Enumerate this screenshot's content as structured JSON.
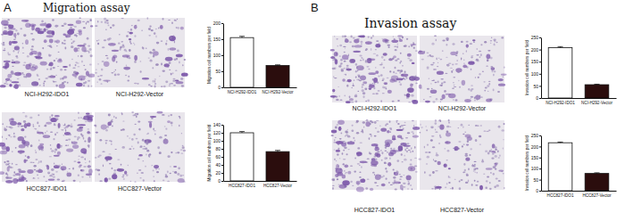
{
  "panels": [
    {
      "letter": "A",
      "title": "Migration assay",
      "captions": [
        [
          "NCI-H292-IDO1",
          "NCI-H292-Vector"
        ],
        [
          "HCC827-IDO1",
          "HCC827-Vector"
        ]
      ]
    },
    {
      "letter": "B",
      "title": "Invasion assay",
      "captions": [
        [
          "NCI-H292-IDO1",
          "NCI-H292-Vector"
        ],
        [
          "HCC827-IDO1",
          "HCC827-Vector"
        ]
      ]
    }
  ],
  "chart_data": [
    {
      "type": "bar",
      "categories": [
        "NCI-H292-IDO1",
        "NCI-H292-Vector"
      ],
      "values": [
        155,
        68
      ],
      "errors": [
        4,
        2
      ],
      "colors": [
        "#ffffff",
        "#2b0d0d"
      ],
      "ylabel": "Migration cell numbers per field",
      "ylim": [
        0,
        200
      ],
      "yticks": [
        0,
        50,
        100,
        150,
        200
      ]
    },
    {
      "type": "bar",
      "categories": [
        "HCC827-IDO1",
        "HCC827-Vector"
      ],
      "values": [
        120,
        73
      ],
      "errors": [
        3,
        3
      ],
      "colors": [
        "#ffffff",
        "#2b0d0d"
      ],
      "ylabel": "Migration cell numbers per field",
      "ylim": [
        0,
        140
      ],
      "yticks": [
        0,
        20,
        40,
        60,
        80,
        100,
        120,
        140
      ]
    },
    {
      "type": "bar",
      "categories": [
        "NCI-H292-IDO1",
        "NCI-H292-Vector"
      ],
      "values": [
        208,
        55
      ],
      "errors": [
        4,
        2
      ],
      "colors": [
        "#ffffff",
        "#2b0d0d"
      ],
      "ylabel": "Invasion cell numbers per field",
      "ylim": [
        0,
        250
      ],
      "yticks": [
        0,
        50,
        100,
        150,
        200,
        250
      ]
    },
    {
      "type": "bar",
      "categories": [
        "HCC827-IDO1",
        "HCC827-Vector"
      ],
      "values": [
        217,
        78
      ],
      "errors": [
        3,
        3
      ],
      "colors": [
        "#ffffff",
        "#2b0d0d"
      ],
      "ylabel": "Invasion cell numbers per field",
      "ylim": [
        0,
        250
      ],
      "yticks": [
        0,
        50,
        100,
        150,
        200,
        250
      ]
    }
  ]
}
